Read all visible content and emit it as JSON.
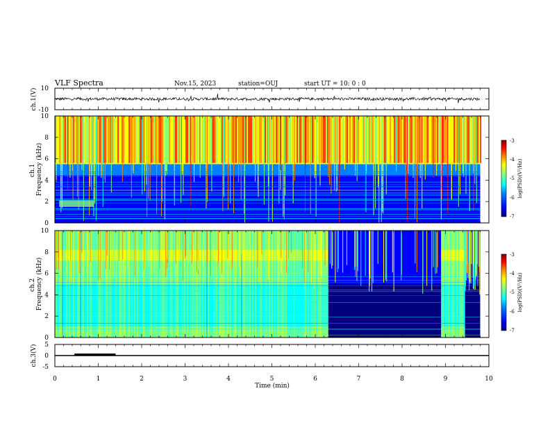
{
  "header": {
    "title": "VLF Spectra",
    "date": "Nov.15, 2023",
    "station": "station=OUJ",
    "start": "start UT =  10: 0  : 0"
  },
  "x_axis": {
    "label": "Time (min)",
    "ticks": [
      "0",
      "1",
      "2",
      "3",
      "4",
      "5",
      "6",
      "7",
      "8",
      "9",
      "10"
    ]
  },
  "colors": {
    "colormap": [
      "#00007f",
      "#0000ff",
      "#0080ff",
      "#00ffff",
      "#80ff80",
      "#ffff00",
      "#ff8000",
      "#ff0000",
      "#7f0000"
    ],
    "line": "#000000"
  },
  "chart_data": [
    {
      "type": "line",
      "panel": "ch1-waveform",
      "ylabel": "ch.1(V)",
      "ylim": [
        -10,
        10
      ],
      "yticks": [
        "10",
        "-10"
      ],
      "xlim": [
        0,
        10
      ],
      "baseline": 0
    },
    {
      "type": "heatmap",
      "panel": "ch1-spectrogram",
      "ylabel": "ch.1\nFrequency (kHz)",
      "ylabel_lines": [
        "ch.1",
        "Frequency (kHz)"
      ],
      "ylim": [
        0,
        10
      ],
      "yticks": [
        "0",
        "2",
        "4",
        "6",
        "8",
        "10"
      ],
      "xlim": [
        0,
        10
      ],
      "colorbar": {
        "label": "log(PSD)(V²/Hz)",
        "range": [
          -7,
          -3
        ],
        "ticks": [
          "-3",
          "-4",
          "-5",
          "-6",
          "-7"
        ]
      },
      "bands": [
        {
          "f": [
            0,
            1
          ],
          "level": -6.4
        },
        {
          "f": [
            1,
            4.5
          ],
          "level": -6.7
        },
        {
          "f": [
            4.5,
            5.5
          ],
          "level": -6.0
        },
        {
          "f": [
            5.5,
            10
          ],
          "level": -4.6
        }
      ],
      "features": [
        {
          "t": [
            0.1,
            0.9
          ],
          "f": [
            1.5,
            2.1
          ],
          "level": -4.8
        }
      ],
      "data_end_min": 9.8
    },
    {
      "type": "heatmap",
      "panel": "ch2-spectrogram",
      "ylabel": "ch.2\nFrequency (kHz)",
      "ylabel_lines": [
        "ch.2",
        "Frequency (kHz)"
      ],
      "ylim": [
        0,
        10
      ],
      "yticks": [
        "0",
        "2",
        "4",
        "6",
        "8",
        "10"
      ],
      "xlim": [
        0,
        10
      ],
      "colorbar": {
        "label": "log(PSD)(V²/Hz)",
        "range": [
          -7,
          -3
        ],
        "ticks": [
          "-3",
          "-4",
          "-5",
          "-6",
          "-7"
        ]
      },
      "segments": [
        {
          "t": [
            0,
            6.3
          ],
          "state": "active"
        },
        {
          "t": [
            6.3,
            8.9
          ],
          "state": "quiet"
        },
        {
          "t": [
            8.9,
            9.45
          ],
          "state": "active"
        },
        {
          "t": [
            9.45,
            9.8
          ],
          "state": "quiet"
        }
      ],
      "active_bands": [
        {
          "f": [
            0,
            1
          ],
          "level": -5.2
        },
        {
          "f": [
            1,
            2
          ],
          "level": -5.6
        },
        {
          "f": [
            2,
            5
          ],
          "level": -5.5
        },
        {
          "f": [
            5,
            7.2
          ],
          "level": -5.2
        },
        {
          "f": [
            7.2,
            8.2
          ],
          "level": -4.3
        },
        {
          "f": [
            8.2,
            10
          ],
          "level": -5.0
        }
      ],
      "data_end_min": 9.8
    },
    {
      "type": "line",
      "panel": "ch3-waveform",
      "ylabel": "ch.3(V)",
      "ylim": [
        -5,
        5
      ],
      "yticks": [
        "5",
        "0",
        "-5"
      ],
      "xlim": [
        0,
        10
      ],
      "series": [
        {
          "x": [
            0,
            10
          ],
          "y": [
            0,
            0
          ]
        },
        {
          "x": [
            0.45,
            1.4
          ],
          "y": [
            0.5,
            0.5
          ]
        }
      ]
    }
  ]
}
